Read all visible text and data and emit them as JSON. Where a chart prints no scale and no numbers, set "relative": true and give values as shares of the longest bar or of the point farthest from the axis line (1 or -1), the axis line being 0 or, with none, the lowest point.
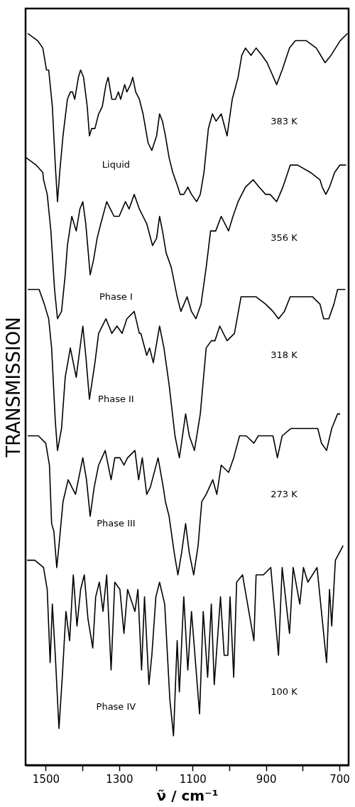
{
  "chart_data": {
    "type": "line",
    "relative": true,
    "xlabel": "ν̃ / cm⁻¹",
    "ylabel": "TRANSMISSION",
    "xlim": [
      1555,
      675
    ],
    "xticks": [
      1500,
      {
        "value": 1400,
        "label": null
      },
      1300,
      {
        "value": 1200,
        "label": null
      },
      1100,
      {
        "value": 1000,
        "label": null
      },
      900,
      {
        "value": 800,
        "label": null
      },
      700
    ],
    "series": [
      {
        "color": "#000000",
        "x": [
          1549,
          1522,
          1508,
          1498,
          1492,
          1482,
          1474,
          1468,
          1462,
          1453,
          1441,
          1433,
          1427,
          1421,
          1411,
          1405,
          1397,
          1387,
          1381,
          1375,
          1366,
          1356,
          1346,
          1336,
          1330,
          1320,
          1310,
          1302,
          1296,
          1285,
          1279,
          1269,
          1263,
          1255,
          1245,
          1235,
          1221,
          1211,
          1198,
          1190,
          1182,
          1174,
          1164,
          1154,
          1140,
          1134,
          1124,
          1113,
          1103,
          1089,
          1079,
          1069,
          1057,
          1046,
          1036,
          1022,
          1006,
          992,
          976,
          966,
          956,
          941,
          927,
          911,
          897,
          871,
          856,
          836,
          820,
          790,
          763,
          739,
          723,
          698,
          678
        ],
        "values": [
          1.0,
          0.99,
          0.98,
          0.95,
          0.95,
          0.9,
          0.82,
          0.77,
          0.81,
          0.86,
          0.91,
          0.92,
          0.92,
          0.91,
          0.94,
          0.95,
          0.94,
          0.9,
          0.86,
          0.87,
          0.87,
          0.89,
          0.9,
          0.93,
          0.94,
          0.91,
          0.91,
          0.92,
          0.91,
          0.93,
          0.92,
          0.93,
          0.94,
          0.92,
          0.91,
          0.89,
          0.85,
          0.84,
          0.86,
          0.89,
          0.88,
          0.86,
          0.83,
          0.81,
          0.79,
          0.78,
          0.78,
          0.79,
          0.78,
          0.77,
          0.78,
          0.81,
          0.87,
          0.89,
          0.88,
          0.89,
          0.86,
          0.91,
          0.94,
          0.97,
          0.98,
          0.97,
          0.98,
          0.97,
          0.96,
          0.93,
          0.95,
          0.98,
          0.99,
          0.99,
          0.98,
          0.96,
          0.97,
          0.99,
          1.0
        ]
      },
      {
        "color": "#000000",
        "x": [
          1553,
          1526,
          1508,
          1506,
          1496,
          1486,
          1476,
          1468,
          1457,
          1447,
          1441,
          1429,
          1417,
          1407,
          1399,
          1391,
          1379,
          1370,
          1360,
          1350,
          1334,
          1324,
          1314,
          1300,
          1283,
          1273,
          1259,
          1245,
          1235,
          1225,
          1209,
          1198,
          1190,
          1182,
          1172,
          1158,
          1142,
          1132,
          1115,
          1103,
          1091,
          1077,
          1063,
          1051,
          1037,
          1022,
          1002,
          990,
          976,
          956,
          935,
          919,
          901,
          889,
          871,
          854,
          834,
          814,
          779,
          753,
          747,
          737,
          727,
          713,
          699,
          682
        ],
        "values": [
          0.83,
          0.82,
          0.81,
          0.8,
          0.78,
          0.73,
          0.65,
          0.61,
          0.62,
          0.67,
          0.71,
          0.75,
          0.73,
          0.76,
          0.77,
          0.74,
          0.67,
          0.69,
          0.72,
          0.74,
          0.77,
          0.76,
          0.75,
          0.75,
          0.77,
          0.76,
          0.78,
          0.76,
          0.75,
          0.74,
          0.71,
          0.72,
          0.75,
          0.73,
          0.7,
          0.68,
          0.64,
          0.62,
          0.64,
          0.62,
          0.61,
          0.63,
          0.68,
          0.73,
          0.73,
          0.75,
          0.73,
          0.75,
          0.77,
          0.79,
          0.8,
          0.79,
          0.78,
          0.78,
          0.77,
          0.79,
          0.82,
          0.82,
          0.81,
          0.8,
          0.79,
          0.78,
          0.79,
          0.81,
          0.82,
          0.82
        ]
      },
      {
        "color": "#000000",
        "x": [
          1549,
          1518,
          1504,
          1492,
          1484,
          1474,
          1468,
          1457,
          1447,
          1433,
          1417,
          1399,
          1391,
          1381,
          1366,
          1356,
          1336,
          1320,
          1306,
          1292,
          1279,
          1259,
          1245,
          1241,
          1225,
          1217,
          1207,
          1190,
          1178,
          1164,
          1148,
          1136,
          1119,
          1109,
          1095,
          1079,
          1063,
          1049,
          1039,
          1026,
          1006,
          986,
          968,
          947,
          927,
          901,
          881,
          866,
          850,
          834,
          806,
          773,
          753,
          743,
          729,
          715,
          705,
          684
        ],
        "values": [
          0.65,
          0.65,
          0.63,
          0.61,
          0.57,
          0.47,
          0.43,
          0.46,
          0.53,
          0.57,
          0.53,
          0.6,
          0.56,
          0.5,
          0.55,
          0.59,
          0.61,
          0.59,
          0.6,
          0.59,
          0.61,
          0.62,
          0.59,
          0.59,
          0.56,
          0.57,
          0.55,
          0.6,
          0.57,
          0.52,
          0.45,
          0.42,
          0.48,
          0.45,
          0.43,
          0.48,
          0.57,
          0.58,
          0.58,
          0.6,
          0.58,
          0.59,
          0.64,
          0.64,
          0.64,
          0.63,
          0.62,
          0.61,
          0.62,
          0.64,
          0.64,
          0.64,
          0.63,
          0.61,
          0.61,
          0.63,
          0.65,
          0.65
        ]
      },
      {
        "color": "#000000",
        "x": [
          1549,
          1520,
          1500,
          1490,
          1484,
          1478,
          1470,
          1464,
          1453,
          1439,
          1419,
          1399,
          1389,
          1379,
          1368,
          1356,
          1338,
          1322,
          1312,
          1298,
          1287,
          1277,
          1257,
          1247,
          1237,
          1225,
          1215,
          1194,
          1180,
          1174,
          1164,
          1150,
          1140,
          1130,
          1119,
          1109,
          1097,
          1085,
          1075,
          1063,
          1045,
          1034,
          1022,
          1002,
          988,
          972,
          954,
          933,
          921,
          897,
          881,
          869,
          856,
          832,
          806,
          786,
          759,
          749,
          735,
          721,
          705,
          698
        ],
        "values": [
          0.45,
          0.45,
          0.44,
          0.41,
          0.33,
          0.32,
          0.27,
          0.3,
          0.36,
          0.39,
          0.37,
          0.42,
          0.39,
          0.34,
          0.38,
          0.41,
          0.43,
          0.39,
          0.42,
          0.42,
          0.41,
          0.42,
          0.43,
          0.39,
          0.42,
          0.37,
          0.38,
          0.42,
          0.38,
          0.36,
          0.34,
          0.29,
          0.26,
          0.29,
          0.33,
          0.29,
          0.26,
          0.3,
          0.36,
          0.37,
          0.39,
          0.37,
          0.41,
          0.4,
          0.42,
          0.45,
          0.45,
          0.44,
          0.45,
          0.45,
          0.45,
          0.42,
          0.45,
          0.46,
          0.46,
          0.46,
          0.46,
          0.44,
          0.43,
          0.46,
          0.48,
          0.48
        ]
      },
      {
        "color": "#000000",
        "x": [
          1551,
          1530,
          1506,
          1496,
          1488,
          1482,
          1474,
          1464,
          1455,
          1445,
          1435,
          1425,
          1415,
          1405,
          1395,
          1385,
          1372,
          1364,
          1354,
          1344,
          1334,
          1322,
          1312,
          1298,
          1287,
          1277,
          1257,
          1249,
          1239,
          1231,
          1219,
          1211,
          1200,
          1190,
          1176,
          1162,
          1152,
          1142,
          1136,
          1124,
          1113,
          1103,
          1081,
          1071,
          1059,
          1049,
          1041,
          1024,
          1014,
          1004,
          998,
          988,
          980,
          964,
          933,
          927,
          907,
          887,
          866,
          856,
          836,
          826,
          808,
          798,
          786,
          761,
          735,
          727,
          721,
          711,
          690
        ],
        "values": [
          0.28,
          0.28,
          0.27,
          0.24,
          0.14,
          0.22,
          0.15,
          0.05,
          0.12,
          0.21,
          0.17,
          0.26,
          0.19,
          0.24,
          0.26,
          0.2,
          0.16,
          0.23,
          0.25,
          0.21,
          0.26,
          0.13,
          0.25,
          0.24,
          0.18,
          0.24,
          0.21,
          0.24,
          0.13,
          0.23,
          0.11,
          0.15,
          0.23,
          0.25,
          0.22,
          0.09,
          0.04,
          0.17,
          0.1,
          0.23,
          0.13,
          0.21,
          0.07,
          0.21,
          0.12,
          0.22,
          0.11,
          0.23,
          0.15,
          0.15,
          0.23,
          0.12,
          0.25,
          0.26,
          0.17,
          0.26,
          0.26,
          0.27,
          0.15,
          0.27,
          0.18,
          0.27,
          0.22,
          0.27,
          0.25,
          0.27,
          0.14,
          0.24,
          0.19,
          0.28,
          0.3
        ]
      }
    ],
    "annotations": [
      "Liquid",
      "383 K",
      "Phase I",
      "356 K",
      "Phase II",
      "318 K",
      "Phase III",
      "273 K",
      "Phase IV",
      "100 K"
    ]
  }
}
